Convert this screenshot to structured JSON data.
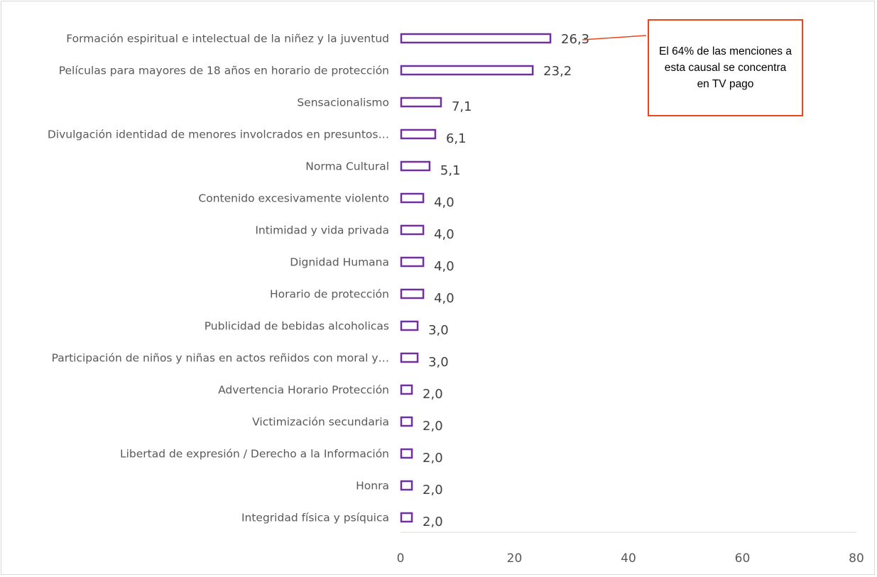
{
  "chart_data": {
    "type": "bar",
    "orientation": "horizontal",
    "categories": [
      "Formación espiritual e intelectual de la niñez y la juventud",
      "Películas para mayores de 18 años en horario de protección",
      "Sensacionalismo",
      "Divulgación identidad de menores involcrados en presuntos…",
      "Norma Cultural",
      "Contenido excesivamente violento",
      "Intimidad y vida privada",
      "Dignidad Humana",
      "Horario de protección",
      "Publicidad de bebidas alcoholicas",
      "Participación de niños y niñas en actos reñidos con moral y…",
      "Advertencia Horario Protección",
      "Victimización secundaria",
      "Libertad de expresión / Derecho a la Información",
      "Honra",
      "Integridad física y psíquica"
    ],
    "values": [
      26.3,
      23.2,
      7.1,
      6.1,
      5.1,
      4.0,
      4.0,
      4.0,
      4.0,
      3.0,
      3.0,
      2.0,
      2.0,
      2.0,
      2.0,
      2.0
    ],
    "value_labels": [
      "26,3",
      "23,2",
      "7,1",
      "6,1",
      "5,1",
      "4,0",
      "4,0",
      "4,0",
      "4,0",
      "3,0",
      "3,0",
      "2,0",
      "2,0",
      "2,0",
      "2,0",
      "2,0"
    ],
    "xlim": [
      0,
      80
    ],
    "x_ticks": [
      "0",
      "20",
      "40",
      "60",
      "80"
    ],
    "title": "",
    "xlabel": "",
    "ylabel": "",
    "grid": false,
    "legend": "none",
    "bar_style": "outline",
    "bar_color": "#7030a0",
    "annotation": {
      "text": "El 64% de las menciones a esta causal se concentra en TV pago",
      "target_category_index": 0,
      "border_color": "#e8461c"
    }
  }
}
